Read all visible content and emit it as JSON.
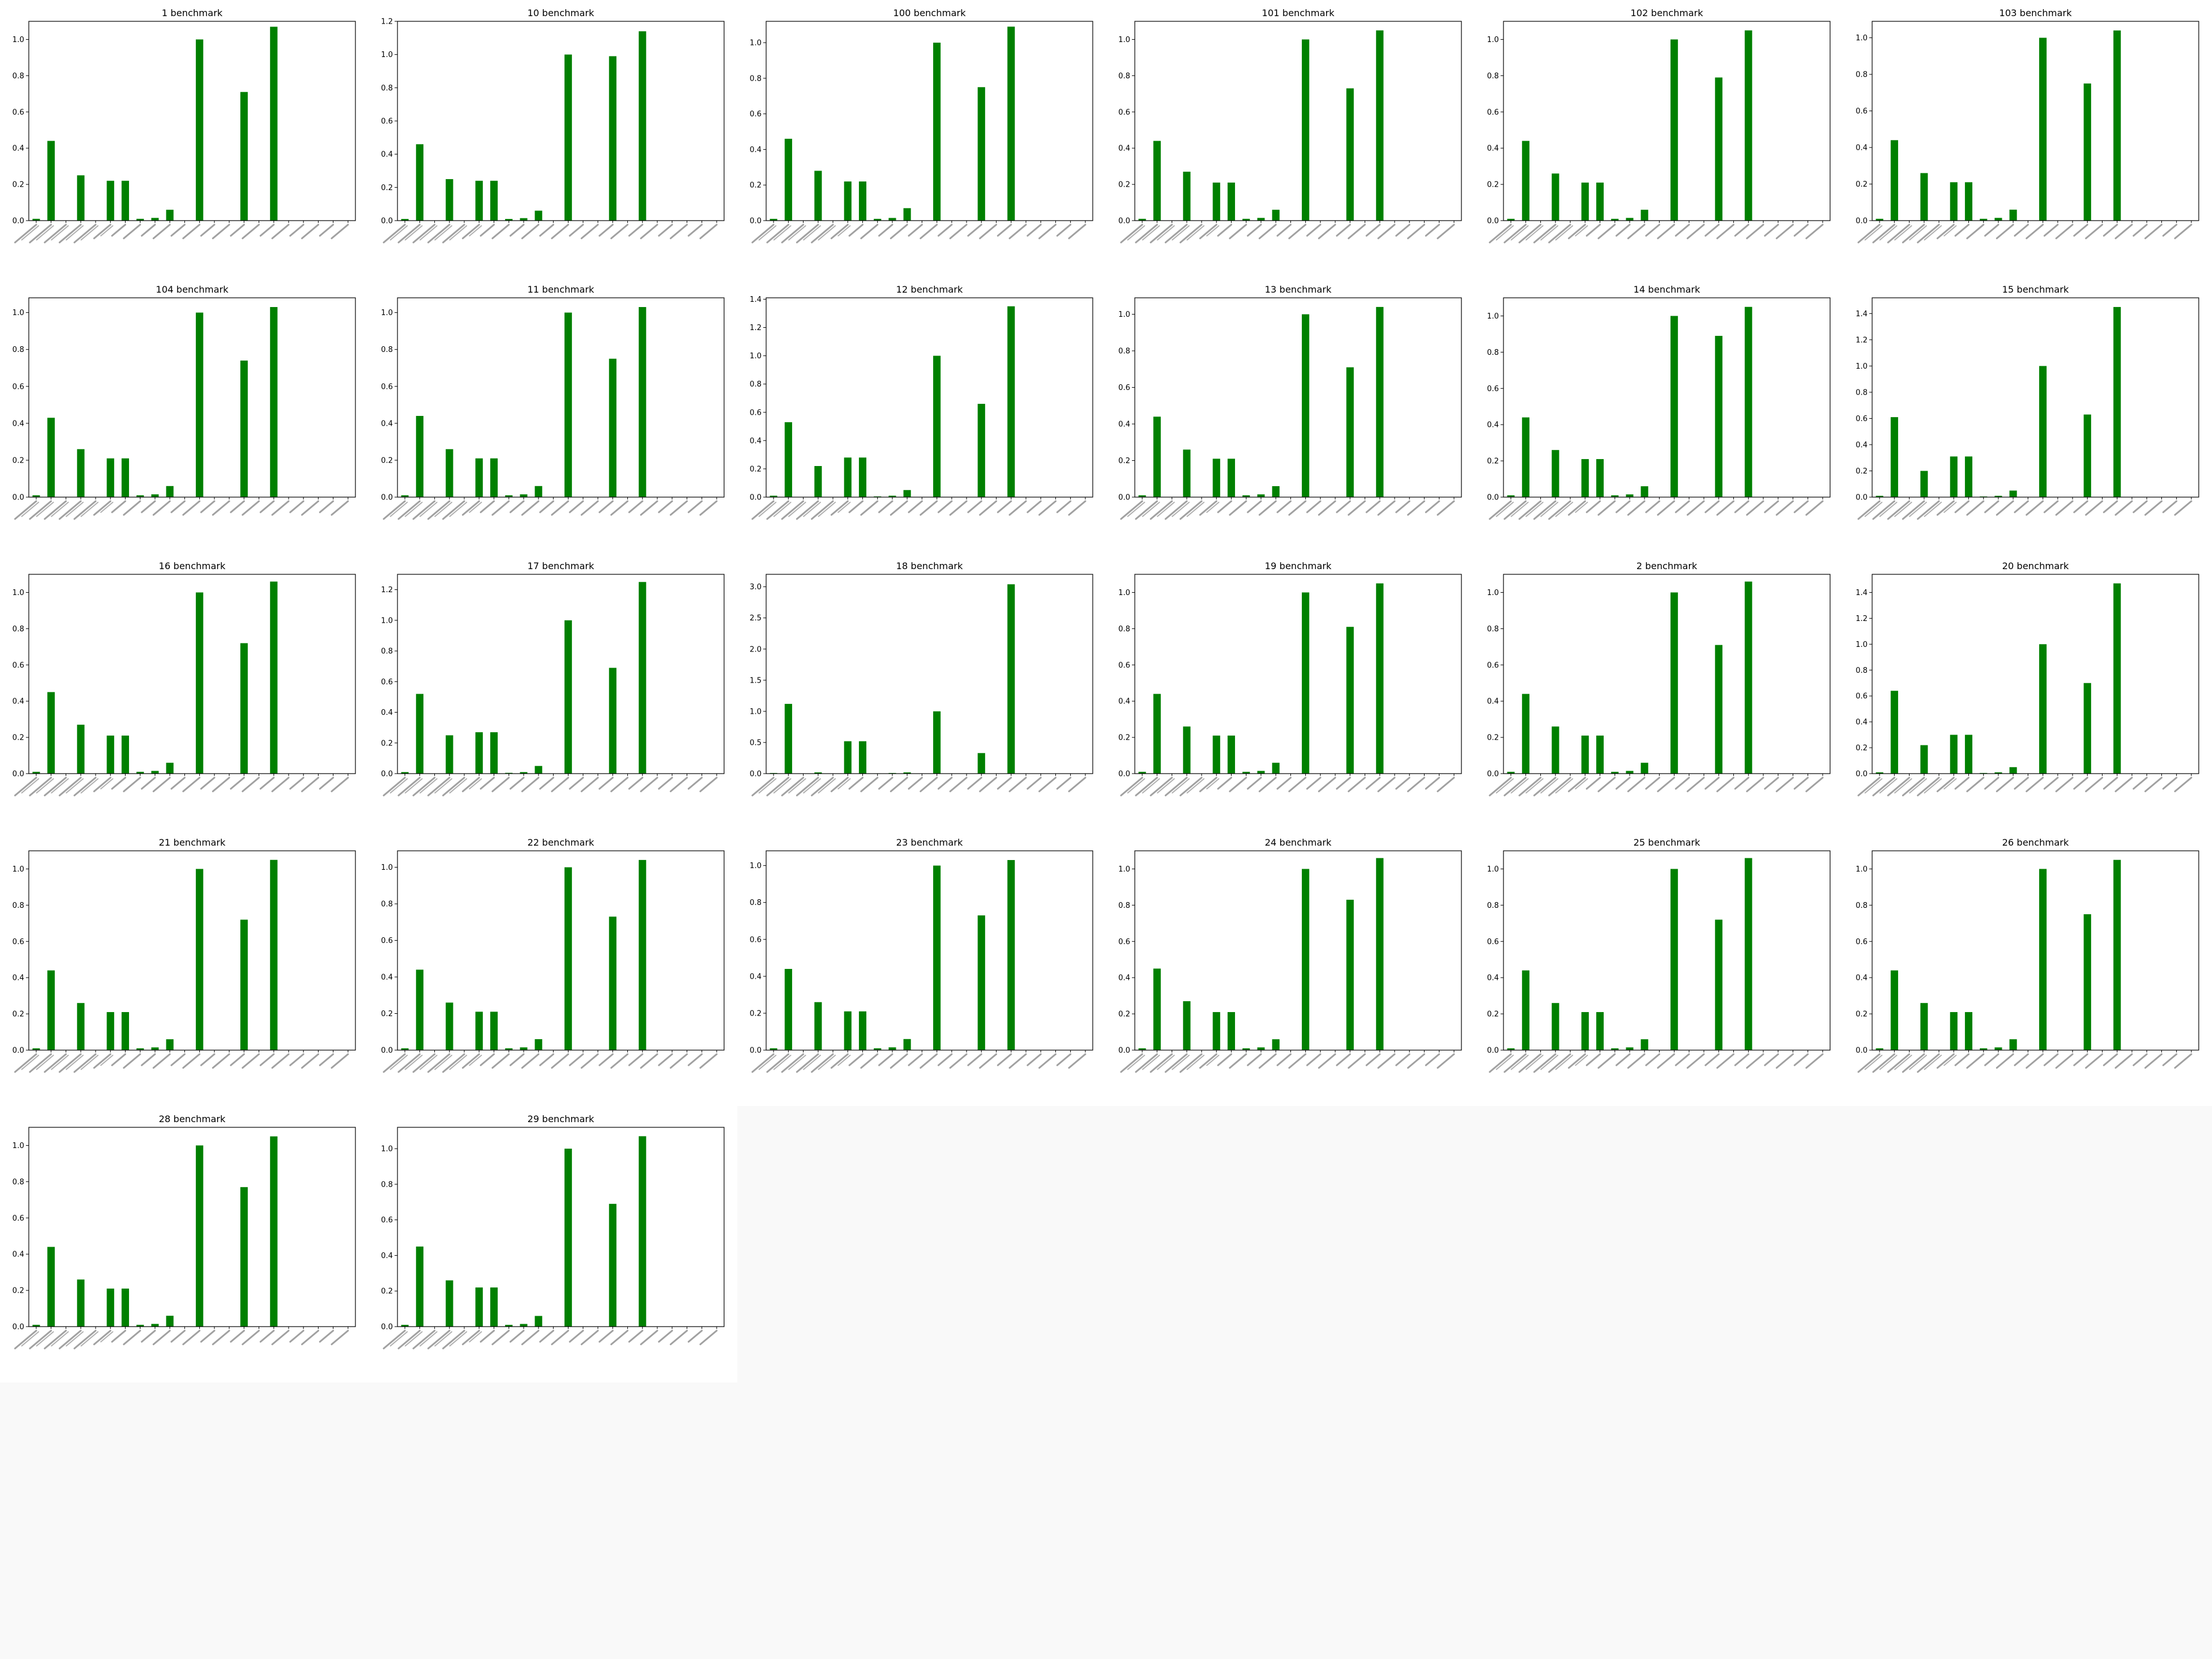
{
  "bar_color": "#008000",
  "chart_data": [
    {
      "type": "bar",
      "title": "1 benchmark",
      "yticks": [
        "0.0",
        "0.2",
        "0.4",
        "0.6",
        "0.8",
        "1.0"
      ],
      "ylim": [
        0,
        1.1
      ],
      "values": [
        0.01,
        0.44,
        0.0,
        0.25,
        0.0,
        0.22,
        0.22,
        0.01,
        0.015,
        0.06,
        0.0,
        1.0,
        0.0,
        0.0,
        0.71,
        0.0,
        1.07,
        0.0,
        0.0,
        0.0,
        0.0,
        0.0
      ]
    },
    {
      "type": "bar",
      "title": "10 benchmark",
      "yticks": [
        "0.0",
        "0.2",
        "0.4",
        "0.6",
        "0.8",
        "1.0",
        "1.2"
      ],
      "ylim": [
        0,
        1.2
      ],
      "values": [
        0.01,
        0.46,
        0.0,
        0.25,
        0.0,
        0.24,
        0.24,
        0.01,
        0.015,
        0.06,
        0.0,
        1.0,
        0.0,
        0.0,
        0.99,
        0.0,
        1.14,
        0.0,
        0.0,
        0.0,
        0.0,
        0.0
      ]
    },
    {
      "type": "bar",
      "title": "100 benchmark",
      "yticks": [
        "0.0",
        "0.2",
        "0.4",
        "0.6",
        "0.8",
        "1.0"
      ],
      "ylim": [
        0,
        1.12
      ],
      "values": [
        0.01,
        0.46,
        0.0,
        0.28,
        0.0,
        0.22,
        0.22,
        0.01,
        0.015,
        0.07,
        0.0,
        1.0,
        0.0,
        0.0,
        0.75,
        0.0,
        1.09,
        0.0,
        0.0,
        0.0,
        0.0,
        0.0
      ]
    },
    {
      "type": "bar",
      "title": "101 benchmark",
      "yticks": [
        "0.0",
        "0.2",
        "0.4",
        "0.6",
        "0.8",
        "1.0"
      ],
      "ylim": [
        0,
        1.1
      ],
      "values": [
        0.01,
        0.44,
        0.0,
        0.27,
        0.0,
        0.21,
        0.21,
        0.01,
        0.015,
        0.06,
        0.0,
        1.0,
        0.0,
        0.0,
        0.73,
        0.0,
        1.05,
        0.0,
        0.0,
        0.0,
        0.0,
        0.0
      ]
    },
    {
      "type": "bar",
      "title": "102 benchmark",
      "yticks": [
        "0.0",
        "0.2",
        "0.4",
        "0.6",
        "0.8",
        "1.0"
      ],
      "ylim": [
        0,
        1.1
      ],
      "values": [
        0.01,
        0.44,
        0.0,
        0.26,
        0.0,
        0.21,
        0.21,
        0.01,
        0.015,
        0.06,
        0.0,
        1.0,
        0.0,
        0.0,
        0.79,
        0.0,
        1.05,
        0.0,
        0.0,
        0.0,
        0.0,
        0.0
      ]
    },
    {
      "type": "bar",
      "title": "103 benchmark",
      "yticks": [
        "0.0",
        "0.2",
        "0.4",
        "0.6",
        "0.8",
        "1.0"
      ],
      "ylim": [
        0,
        1.09
      ],
      "values": [
        0.01,
        0.44,
        0.0,
        0.26,
        0.0,
        0.21,
        0.21,
        0.01,
        0.015,
        0.06,
        0.0,
        1.0,
        0.0,
        0.0,
        0.75,
        0.0,
        1.04,
        0.0,
        0.0,
        0.0,
        0.0,
        0.0
      ]
    },
    {
      "type": "bar",
      "title": "104 benchmark",
      "yticks": [
        "0.0",
        "0.2",
        "0.4",
        "0.6",
        "0.8",
        "1.0"
      ],
      "ylim": [
        0,
        1.08
      ],
      "values": [
        0.01,
        0.43,
        0.0,
        0.26,
        0.0,
        0.21,
        0.21,
        0.01,
        0.015,
        0.06,
        0.0,
        1.0,
        0.0,
        0.0,
        0.74,
        0.0,
        1.03,
        0.0,
        0.0,
        0.0,
        0.0,
        0.0
      ]
    },
    {
      "type": "bar",
      "title": "11 benchmark",
      "yticks": [
        "0.0",
        "0.2",
        "0.4",
        "0.6",
        "0.8",
        "1.0"
      ],
      "ylim": [
        0,
        1.08
      ],
      "values": [
        0.01,
        0.44,
        0.0,
        0.26,
        0.0,
        0.21,
        0.21,
        0.01,
        0.015,
        0.06,
        0.0,
        1.0,
        0.0,
        0.0,
        0.75,
        0.0,
        1.03,
        0.0,
        0.0,
        0.0,
        0.0,
        0.0
      ]
    },
    {
      "type": "bar",
      "title": "12 benchmark",
      "yticks": [
        "0.0",
        "0.2",
        "0.4",
        "0.6",
        "0.8",
        "1.0",
        "1.2",
        "1.4"
      ],
      "ylim": [
        0,
        1.41
      ],
      "values": [
        0.01,
        0.53,
        0.0,
        0.22,
        0.0,
        0.28,
        0.28,
        0.005,
        0.01,
        0.05,
        0.0,
        1.0,
        0.0,
        0.0,
        0.66,
        0.0,
        1.35,
        0.0,
        0.0,
        0.0,
        0.0,
        0.0
      ]
    },
    {
      "type": "bar",
      "title": "13 benchmark",
      "yticks": [
        "0.0",
        "0.2",
        "0.4",
        "0.6",
        "0.8",
        "1.0"
      ],
      "ylim": [
        0,
        1.09
      ],
      "values": [
        0.01,
        0.44,
        0.0,
        0.26,
        0.0,
        0.21,
        0.21,
        0.01,
        0.015,
        0.06,
        0.0,
        1.0,
        0.0,
        0.0,
        0.71,
        0.0,
        1.04,
        0.0,
        0.0,
        0.0,
        0.0,
        0.0
      ]
    },
    {
      "type": "bar",
      "title": "14 benchmark",
      "yticks": [
        "0.0",
        "0.2",
        "0.4",
        "0.6",
        "0.8",
        "1.0"
      ],
      "ylim": [
        0,
        1.1
      ],
      "values": [
        0.01,
        0.44,
        0.0,
        0.26,
        0.0,
        0.21,
        0.21,
        0.01,
        0.015,
        0.06,
        0.0,
        1.0,
        0.0,
        0.0,
        0.89,
        0.0,
        1.05,
        0.0,
        0.0,
        0.0,
        0.0,
        0.0
      ]
    },
    {
      "type": "bar",
      "title": "15 benchmark",
      "yticks": [
        "0.0",
        "0.2",
        "0.4",
        "0.6",
        "0.8",
        "1.0",
        "1.2",
        "1.4"
      ],
      "ylim": [
        0,
        1.52
      ],
      "values": [
        0.01,
        0.61,
        0.0,
        0.2,
        0.0,
        0.31,
        0.31,
        0.005,
        0.01,
        0.05,
        0.0,
        1.0,
        0.0,
        0.0,
        0.63,
        0.0,
        1.45,
        0.0,
        0.0,
        0.0,
        0.0,
        0.0
      ]
    },
    {
      "type": "bar",
      "title": "16 benchmark",
      "yticks": [
        "0.0",
        "0.2",
        "0.4",
        "0.6",
        "0.8",
        "1.0"
      ],
      "ylim": [
        0,
        1.1
      ],
      "values": [
        0.01,
        0.45,
        0.0,
        0.27,
        0.0,
        0.21,
        0.21,
        0.01,
        0.015,
        0.06,
        0.0,
        1.0,
        0.0,
        0.0,
        0.72,
        0.0,
        1.06,
        0.0,
        0.0,
        0.0,
        0.0,
        0.0
      ]
    },
    {
      "type": "bar",
      "title": "17 benchmark",
      "yticks": [
        "0.0",
        "0.2",
        "0.4",
        "0.6",
        "0.8",
        "1.0",
        "1.2"
      ],
      "ylim": [
        0,
        1.3
      ],
      "values": [
        0.01,
        0.52,
        0.0,
        0.25,
        0.0,
        0.27,
        0.27,
        0.005,
        0.01,
        0.05,
        0.0,
        1.0,
        0.0,
        0.0,
        0.69,
        0.0,
        1.25,
        0.0,
        0.0,
        0.0,
        0.0,
        0.0
      ]
    },
    {
      "type": "bar",
      "title": "18 benchmark",
      "yticks": [
        "0.0",
        "0.5",
        "1.0",
        "1.5",
        "2.0",
        "2.5",
        "3.0"
      ],
      "ylim": [
        0,
        3.2
      ],
      "values": [
        0.01,
        1.12,
        0.0,
        0.02,
        0.0,
        0.52,
        0.52,
        0.005,
        0.01,
        0.02,
        0.0,
        1.0,
        0.0,
        0.0,
        0.33,
        0.0,
        3.04,
        0.0,
        0.0,
        0.0,
        0.0,
        0.0
      ]
    },
    {
      "type": "bar",
      "title": "19 benchmark",
      "yticks": [
        "0.0",
        "0.2",
        "0.4",
        "0.6",
        "0.8",
        "1.0"
      ],
      "ylim": [
        0,
        1.1
      ],
      "values": [
        0.01,
        0.44,
        0.0,
        0.26,
        0.0,
        0.21,
        0.21,
        0.01,
        0.015,
        0.06,
        0.0,
        1.0,
        0.0,
        0.0,
        0.81,
        0.0,
        1.05,
        0.0,
        0.0,
        0.0,
        0.0,
        0.0
      ]
    },
    {
      "type": "bar",
      "title": "2 benchmark",
      "yticks": [
        "0.0",
        "0.2",
        "0.4",
        "0.6",
        "0.8",
        "1.0"
      ],
      "ylim": [
        0,
        1.1
      ],
      "values": [
        0.01,
        0.44,
        0.0,
        0.26,
        0.0,
        0.21,
        0.21,
        0.01,
        0.015,
        0.06,
        0.0,
        1.0,
        0.0,
        0.0,
        0.71,
        0.0,
        1.06,
        0.0,
        0.0,
        0.0,
        0.0,
        0.0
      ]
    },
    {
      "type": "bar",
      "title": "20 benchmark",
      "yticks": [
        "0.0",
        "0.2",
        "0.4",
        "0.6",
        "0.8",
        "1.0",
        "1.2",
        "1.4"
      ],
      "ylim": [
        0,
        1.54
      ],
      "values": [
        0.01,
        0.64,
        0.0,
        0.22,
        0.0,
        0.3,
        0.3,
        0.005,
        0.01,
        0.05,
        0.0,
        1.0,
        0.0,
        0.0,
        0.7,
        0.0,
        1.47,
        0.0,
        0.0,
        0.0,
        0.0,
        0.0
      ]
    },
    {
      "type": "bar",
      "title": "21 benchmark",
      "yticks": [
        "0.0",
        "0.2",
        "0.4",
        "0.6",
        "0.8",
        "1.0"
      ],
      "ylim": [
        0,
        1.1
      ],
      "values": [
        0.01,
        0.44,
        0.0,
        0.26,
        0.0,
        0.21,
        0.21,
        0.01,
        0.015,
        0.06,
        0.0,
        1.0,
        0.0,
        0.0,
        0.72,
        0.0,
        1.05,
        0.0,
        0.0,
        0.0,
        0.0,
        0.0
      ]
    },
    {
      "type": "bar",
      "title": "22 benchmark",
      "yticks": [
        "0.0",
        "0.2",
        "0.4",
        "0.6",
        "0.8",
        "1.0"
      ],
      "ylim": [
        0,
        1.09
      ],
      "values": [
        0.01,
        0.44,
        0.0,
        0.26,
        0.0,
        0.21,
        0.21,
        0.01,
        0.015,
        0.06,
        0.0,
        1.0,
        0.0,
        0.0,
        0.73,
        0.0,
        1.04,
        0.0,
        0.0,
        0.0,
        0.0,
        0.0
      ]
    },
    {
      "type": "bar",
      "title": "23 benchmark",
      "yticks": [
        "0.0",
        "0.2",
        "0.4",
        "0.6",
        "0.8",
        "1.0"
      ],
      "ylim": [
        0,
        1.08
      ],
      "values": [
        0.01,
        0.44,
        0.0,
        0.26,
        0.0,
        0.21,
        0.21,
        0.01,
        0.015,
        0.06,
        0.0,
        1.0,
        0.0,
        0.0,
        0.73,
        0.0,
        1.03,
        0.0,
        0.0,
        0.0,
        0.0,
        0.0
      ]
    },
    {
      "type": "bar",
      "title": "24 benchmark",
      "yticks": [
        "0.0",
        "0.2",
        "0.4",
        "0.6",
        "0.8",
        "1.0"
      ],
      "ylim": [
        0,
        1.1
      ],
      "values": [
        0.01,
        0.45,
        0.0,
        0.27,
        0.0,
        0.21,
        0.21,
        0.01,
        0.015,
        0.06,
        0.0,
        1.0,
        0.0,
        0.0,
        0.83,
        0.0,
        1.06,
        0.0,
        0.0,
        0.0,
        0.0,
        0.0
      ]
    },
    {
      "type": "bar",
      "title": "25 benchmark",
      "yticks": [
        "0.0",
        "0.2",
        "0.4",
        "0.6",
        "0.8",
        "1.0"
      ],
      "ylim": [
        0,
        1.1
      ],
      "values": [
        0.01,
        0.44,
        0.0,
        0.26,
        0.0,
        0.21,
        0.21,
        0.01,
        0.015,
        0.06,
        0.0,
        1.0,
        0.0,
        0.0,
        0.72,
        0.0,
        1.06,
        0.0,
        0.0,
        0.0,
        0.0,
        0.0
      ]
    },
    {
      "type": "bar",
      "title": "26 benchmark",
      "yticks": [
        "0.0",
        "0.2",
        "0.4",
        "0.6",
        "0.8",
        "1.0"
      ],
      "ylim": [
        0,
        1.1
      ],
      "values": [
        0.01,
        0.44,
        0.0,
        0.26,
        0.0,
        0.21,
        0.21,
        0.01,
        0.015,
        0.06,
        0.0,
        1.0,
        0.0,
        0.0,
        0.75,
        0.0,
        1.05,
        0.0,
        0.0,
        0.0,
        0.0,
        0.0
      ]
    },
    {
      "type": "bar",
      "title": "28 benchmark",
      "yticks": [
        "0.0",
        "0.2",
        "0.4",
        "0.6",
        "0.8",
        "1.0"
      ],
      "ylim": [
        0,
        1.1
      ],
      "values": [
        0.01,
        0.44,
        0.0,
        0.26,
        0.0,
        0.21,
        0.21,
        0.01,
        0.015,
        0.06,
        0.0,
        1.0,
        0.0,
        0.0,
        0.77,
        0.0,
        1.05,
        0.0,
        0.0,
        0.0,
        0.0,
        0.0
      ]
    },
    {
      "type": "bar",
      "title": "29 benchmark",
      "yticks": [
        "0.0",
        "0.2",
        "0.4",
        "0.6",
        "0.8",
        "1.0"
      ],
      "ylim": [
        0,
        1.12
      ],
      "values": [
        0.01,
        0.45,
        0.0,
        0.26,
        0.0,
        0.22,
        0.22,
        0.01,
        0.015,
        0.06,
        0.0,
        1.0,
        0.0,
        0.0,
        0.69,
        0.0,
        1.07,
        0.0,
        0.0,
        0.0,
        0.0,
        0.0
      ]
    }
  ]
}
